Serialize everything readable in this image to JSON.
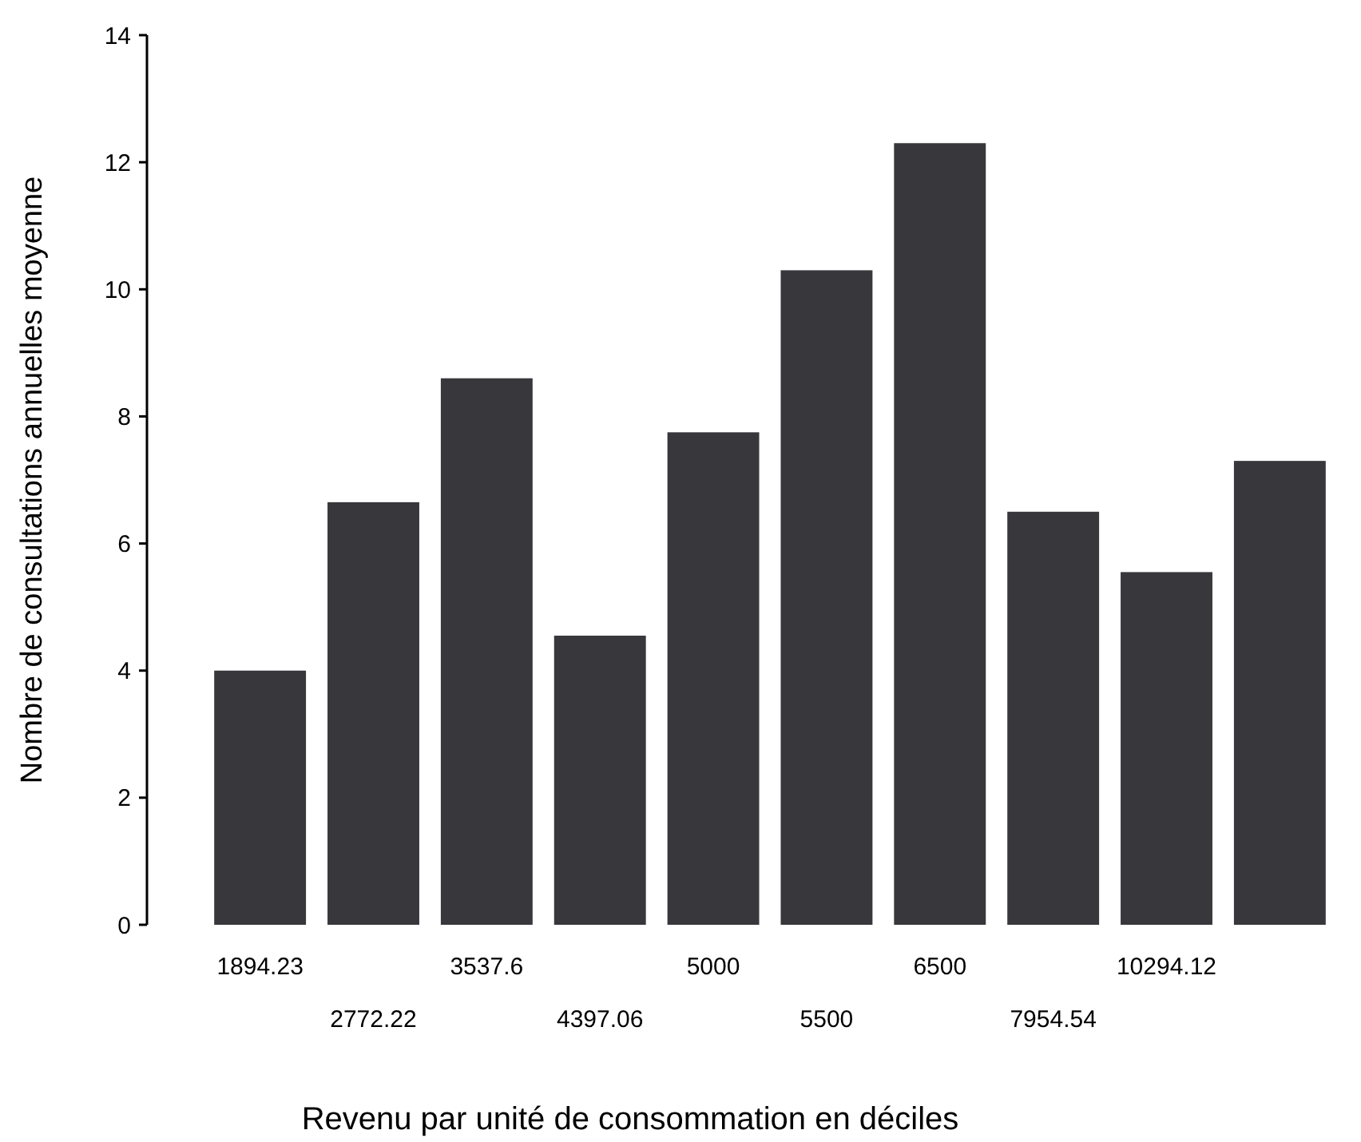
{
  "chart_data": {
    "type": "bar",
    "xlabel": "Revenu par unité de consommation en déciles",
    "ylabel": "Nombre de consultations annuelles moyenne",
    "categories": [
      "1894.23",
      "2772.22",
      "3537.6",
      "4397.06",
      "5000",
      "5500",
      "6500",
      "7954.54",
      "10294.12",
      null
    ],
    "values": [
      4.0,
      6.65,
      8.6,
      4.55,
      7.75,
      10.3,
      12.3,
      6.5,
      5.55,
      7.3
    ],
    "color": "#38373c",
    "ylim": [
      0,
      14
    ],
    "yticks": [
      0,
      2,
      4,
      6,
      8,
      10,
      12,
      14
    ],
    "grid": false
  }
}
